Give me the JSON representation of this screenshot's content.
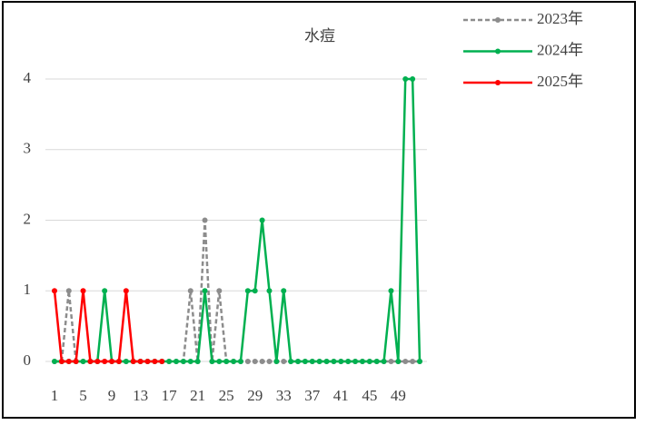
{
  "chart_data": {
    "type": "line",
    "title": "水痘",
    "x": [
      1,
      2,
      3,
      4,
      5,
      6,
      7,
      8,
      9,
      10,
      11,
      12,
      13,
      14,
      15,
      16,
      17,
      18,
      19,
      20,
      21,
      22,
      23,
      24,
      25,
      26,
      27,
      28,
      29,
      30,
      31,
      32,
      33,
      34,
      35,
      36,
      37,
      38,
      39,
      40,
      41,
      42,
      43,
      44,
      45,
      46,
      47,
      48,
      49,
      50,
      51,
      52
    ],
    "xlim": [
      1,
      52
    ],
    "xticks": [
      1,
      5,
      9,
      13,
      17,
      21,
      25,
      29,
      33,
      37,
      41,
      45,
      49
    ],
    "ylim": [
      0,
      4
    ],
    "yticks": [
      0,
      1,
      2,
      3,
      4
    ],
    "grid": true,
    "legend": "top-right",
    "series": [
      {
        "name": "2023年",
        "color": "#8c8c8c",
        "dashed": true,
        "values": [
          0,
          0,
          1,
          0,
          0,
          0,
          0,
          0,
          0,
          0,
          0,
          0,
          0,
          0,
          0,
          0,
          0,
          0,
          0,
          1,
          0,
          2,
          0,
          1,
          0,
          0,
          0,
          0,
          0,
          0,
          0,
          0,
          0,
          0,
          0,
          0,
          0,
          0,
          0,
          0,
          0,
          0,
          0,
          0,
          0,
          0,
          0,
          0,
          0,
          0,
          0,
          0
        ]
      },
      {
        "name": "2024年",
        "color": "#00b050",
        "dashed": false,
        "values": [
          0,
          0,
          0,
          0,
          0,
          0,
          0,
          1,
          0,
          0,
          0,
          0,
          0,
          0,
          0,
          0,
          0,
          0,
          0,
          0,
          0,
          1,
          0,
          0,
          0,
          0,
          0,
          1,
          1,
          2,
          1,
          0,
          1,
          0,
          0,
          0,
          0,
          0,
          0,
          0,
          0,
          0,
          0,
          0,
          0,
          0,
          0,
          1,
          0,
          4,
          4,
          0
        ]
      },
      {
        "name": "2025年",
        "color": "#ff0000",
        "dashed": false,
        "values": [
          1,
          0,
          0,
          0,
          1,
          0,
          0,
          0,
          0,
          0,
          1,
          0,
          0,
          0,
          0,
          0,
          null,
          null,
          null,
          null,
          null,
          null,
          null,
          null,
          null,
          null,
          null,
          null,
          null,
          null,
          null,
          null,
          null,
          null,
          null,
          null,
          null,
          null,
          null,
          null,
          null,
          null,
          null,
          null,
          null,
          null,
          null,
          null,
          null,
          null,
          null,
          null
        ]
      }
    ]
  }
}
